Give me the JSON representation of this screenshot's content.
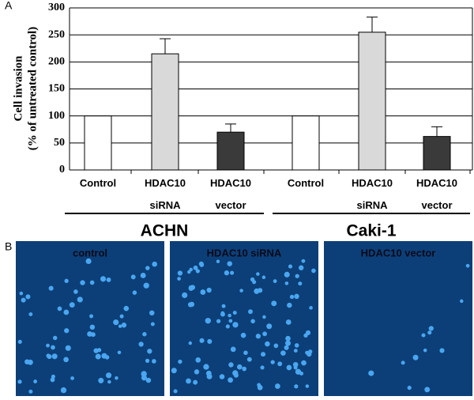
{
  "chart_data": {
    "type": "bar",
    "panel_label": "A",
    "y_label": [
      "Cell invasion",
      "(% of untreated control)"
    ],
    "categories": [
      "Control",
      "HDAC10 siRNA",
      "HDAC10 vector",
      "Control",
      "HDAC10 siRNA",
      "HDAC10 vector"
    ],
    "values": [
      100,
      215,
      70,
      100,
      255,
      62
    ],
    "errors": [
      null,
      28,
      15,
      null,
      28,
      18
    ],
    "colors": [
      "#ffffff",
      "#d9d9d9",
      "#3a3a3a",
      "#ffffff",
      "#d9d9d9",
      "#3a3a3a"
    ],
    "groups": [
      {
        "name": "ACHN",
        "count": 3
      },
      {
        "name": "Caki-1",
        "count": 3
      }
    ],
    "ylim": [
      0,
      300
    ],
    "yticks": [
      0,
      50,
      100,
      150,
      200,
      250,
      300
    ],
    "grid": true
  },
  "panel_b": {
    "panel_label": "B",
    "images": [
      "control",
      "HDAC10 siRNA",
      "HDAC10 vector"
    ]
  }
}
